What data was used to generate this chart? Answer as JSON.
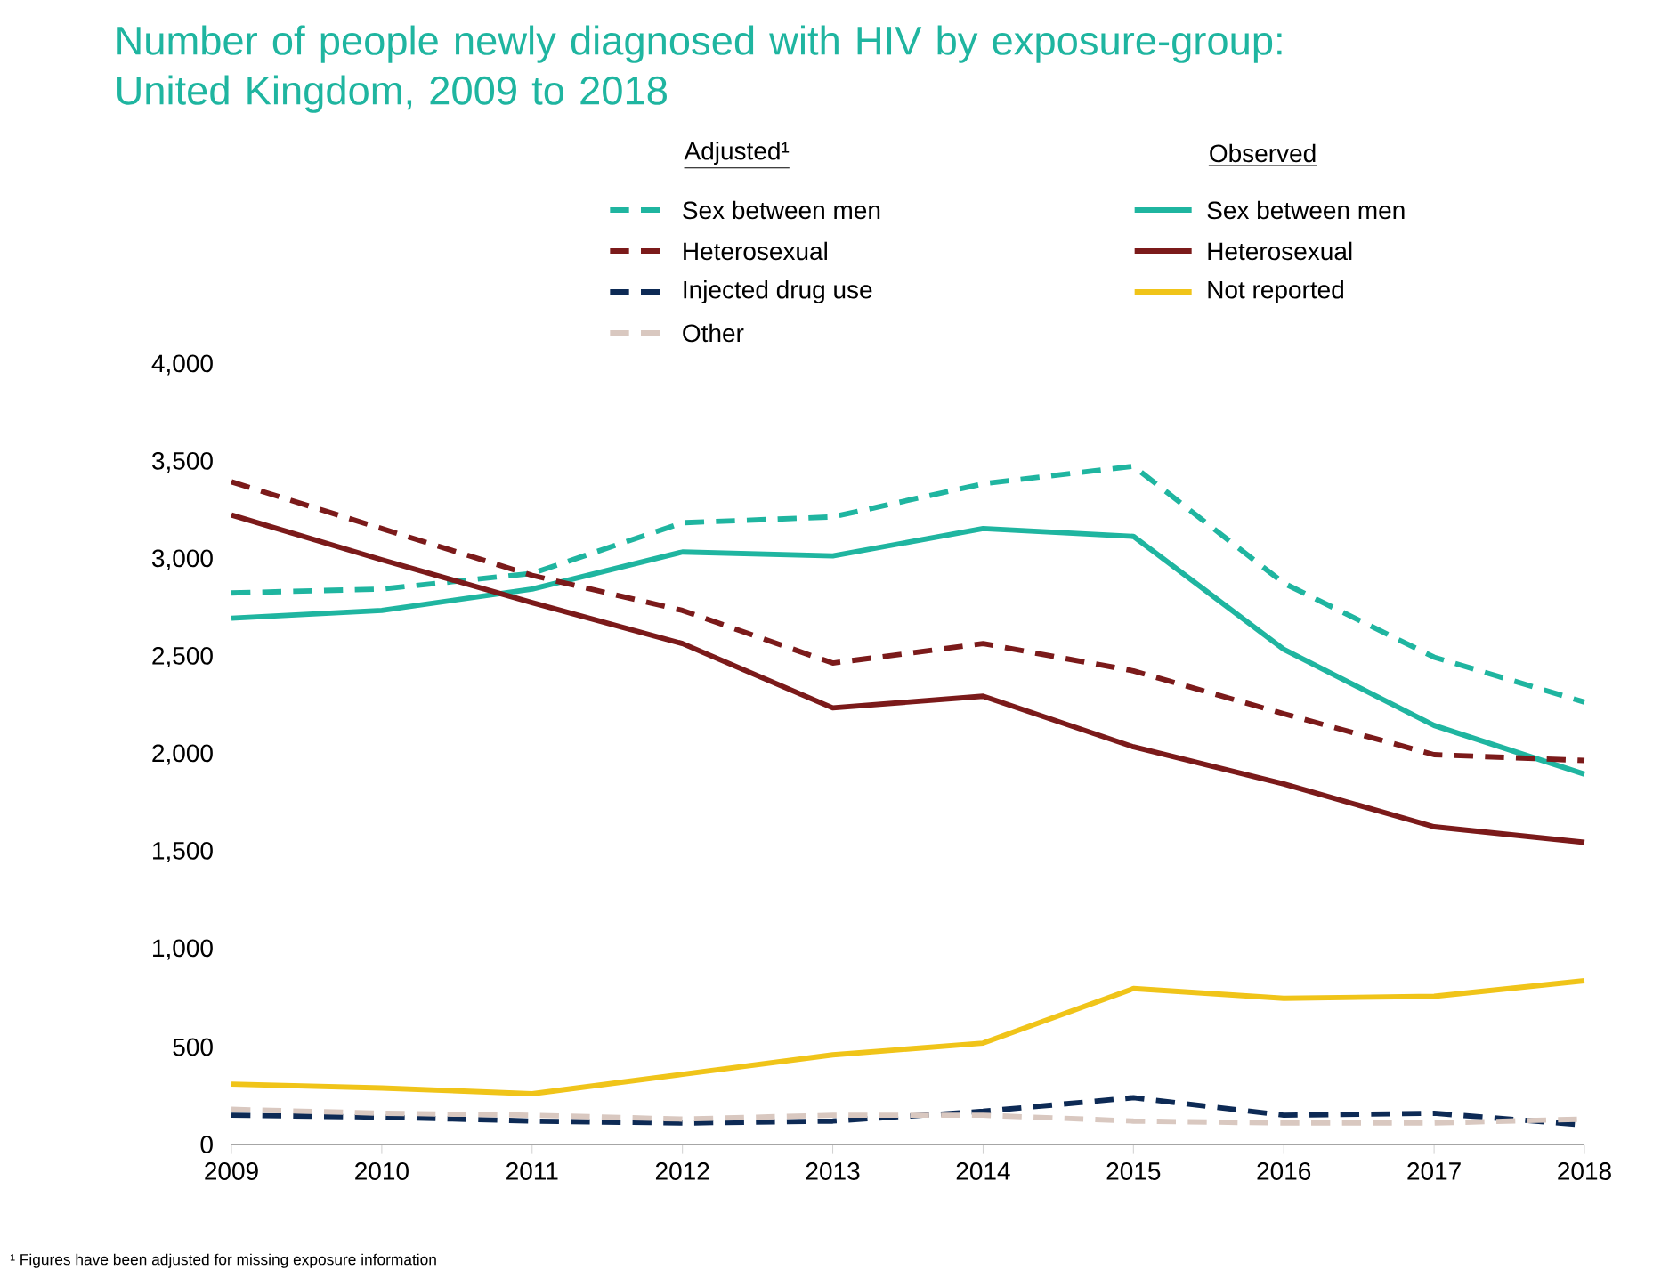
{
  "chart_data": {
    "type": "line",
    "title": "Number of people newly diagnosed with HIV by exposure-group: United Kingdom, 2009 to 2018",
    "x": [
      2009,
      2010,
      2011,
      2012,
      2013,
      2014,
      2015,
      2016,
      2017,
      2018
    ],
    "xlim": [
      2009,
      2018
    ],
    "xticks": [
      2009,
      2010,
      2011,
      2012,
      2013,
      2014,
      2015,
      2016,
      2017,
      2018
    ],
    "ylim": [
      0,
      4000
    ],
    "yticks": [
      {
        "value": 0,
        "label": "0"
      },
      {
        "value": 500,
        "label": "500"
      },
      {
        "value": 1000,
        "label": "1,000"
      },
      {
        "value": 1500,
        "label": "1,500"
      },
      {
        "value": 2000,
        "label": "2,000"
      },
      {
        "value": 2500,
        "label": "2,500"
      },
      {
        "value": 3000,
        "label": "3,000"
      },
      {
        "value": 3500,
        "label": "3,500"
      },
      {
        "value": 4000,
        "label": "4,000"
      }
    ],
    "legend_title": "Adjusted¹",
    "legend": "top right",
    "grid": false,
    "series": [
      {
        "name": "Sex between men",
        "color": "#1fb5a0",
        "line_style": "dashed",
        "values": [
          2830,
          2850,
          2930,
          3190,
          3220,
          3390,
          3480,
          2880,
          2500,
          2270
        ]
      },
      {
        "name": "Sex between men",
        "color": "#1fb5a0",
        "line_style": "solid",
        "values": [
          2700,
          2740,
          2850,
          3040,
          3020,
          3160,
          3120,
          2540,
          2150,
          1900
        ]
      },
      {
        "name": "Heterosexual",
        "color": "#7b1a1a",
        "line_style": "dashed",
        "values": [
          3400,
          3160,
          2920,
          2740,
          2470,
          2570,
          2430,
          2210,
          2000,
          1970
        ]
      },
      {
        "name": "Heterosexual",
        "color": "#7b1a1a",
        "line_style": "solid",
        "values": [
          3230,
          3000,
          2780,
          2570,
          2240,
          2300,
          2040,
          1850,
          1630,
          1550
        ]
      },
      {
        "name": "Injected drug use",
        "color": "#0d2a55",
        "line_style": "dashed",
        "values": [
          150,
          140,
          120,
          110,
          120,
          170,
          240,
          150,
          160,
          100
        ]
      },
      {
        "name": "Not reported",
        "color": "#f0c419",
        "line_style": "solid",
        "values": [
          310,
          290,
          260,
          360,
          460,
          520,
          800,
          750,
          760,
          840
        ]
      },
      {
        "name": "Other",
        "color": "#d9c8c0",
        "line_style": "dashed",
        "values": [
          180,
          160,
          150,
          130,
          150,
          150,
          120,
          110,
          110,
          130
        ]
      }
    ],
    "annotations": [
      "Observed",
      "¹ Figures have been adjusted for missing exposure information"
    ]
  }
}
